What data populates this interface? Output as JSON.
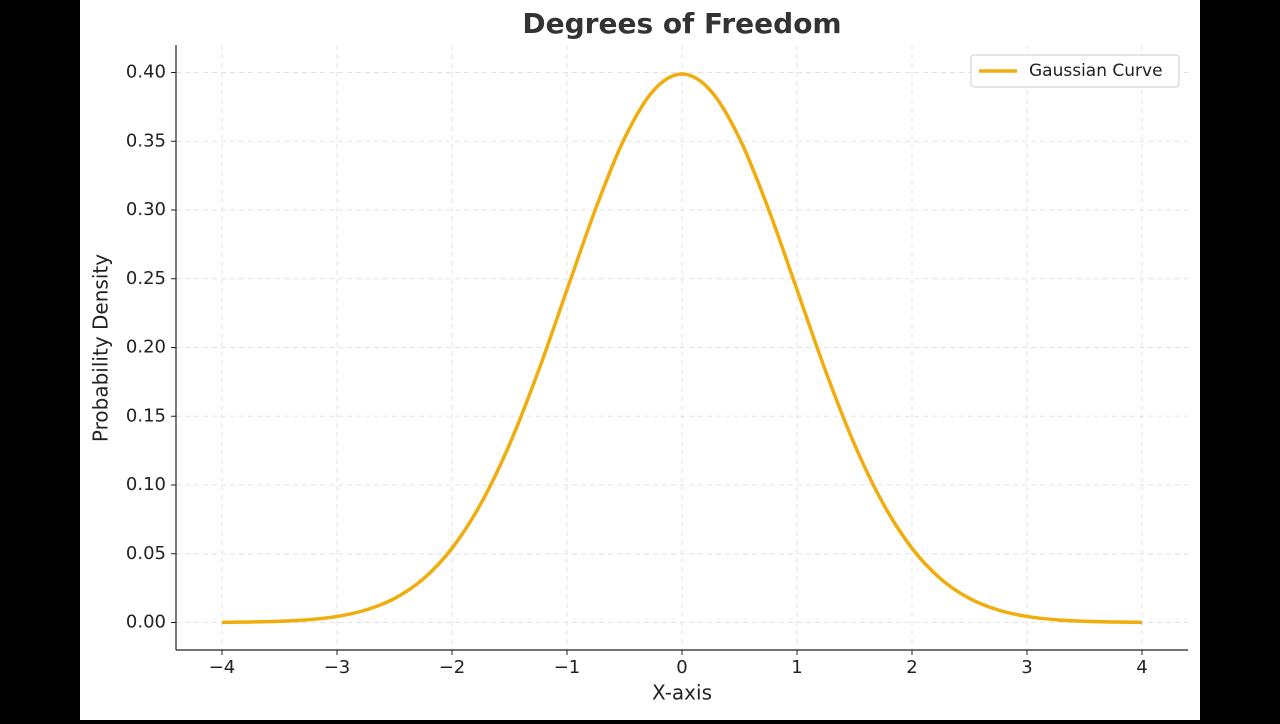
{
  "chart_data": {
    "type": "line",
    "title": "Degrees of Freedom",
    "xlabel": "X-axis",
    "ylabel": "Probability Density",
    "x": [
      -4,
      -3.75,
      -3.5,
      -3.25,
      -3,
      -2.75,
      -2.5,
      -2.25,
      -2,
      -1.75,
      -1.5,
      -1.25,
      -1,
      -0.75,
      -0.5,
      -0.25,
      0,
      0.25,
      0.5,
      0.75,
      1,
      1.25,
      1.5,
      1.75,
      2,
      2.25,
      2.5,
      2.75,
      3,
      3.25,
      3.5,
      3.75,
      4
    ],
    "series": [
      {
        "name": "Gaussian Curve",
        "color": "#f0ad0e",
        "values": [
          0.0001,
          0.0004,
          0.0009,
          0.002,
          0.0044,
          0.0091,
          0.0175,
          0.0317,
          0.054,
          0.0863,
          0.1295,
          0.1826,
          0.242,
          0.3011,
          0.3521,
          0.3867,
          0.3989,
          0.3867,
          0.3521,
          0.3011,
          0.242,
          0.1826,
          0.1295,
          0.0863,
          0.054,
          0.0317,
          0.0175,
          0.0091,
          0.0044,
          0.002,
          0.0009,
          0.0004,
          0.0001
        ]
      }
    ],
    "xlim": [
      -4.4,
      4.4
    ],
    "ylim": [
      -0.02,
      0.42
    ],
    "xticks": [
      {
        "value": -4,
        "label": "−4"
      },
      {
        "value": -3,
        "label": "−3"
      },
      {
        "value": -2,
        "label": "−2"
      },
      {
        "value": -1,
        "label": "−1"
      },
      0,
      1,
      2,
      3,
      4
    ],
    "yticks": [
      {
        "value": 0,
        "label": "0.00"
      },
      {
        "value": 0.05,
        "label": "0.05"
      },
      {
        "value": 0.1,
        "label": "0.10"
      },
      {
        "value": 0.15,
        "label": "0.15"
      },
      {
        "value": 0.2,
        "label": "0.20"
      },
      {
        "value": 0.25,
        "label": "0.25"
      },
      {
        "value": 0.3,
        "label": "0.30"
      },
      {
        "value": 0.35,
        "label": "0.35"
      },
      {
        "value": 0.4,
        "label": "0.40"
      }
    ],
    "grid": true,
    "legend": "upper right"
  }
}
